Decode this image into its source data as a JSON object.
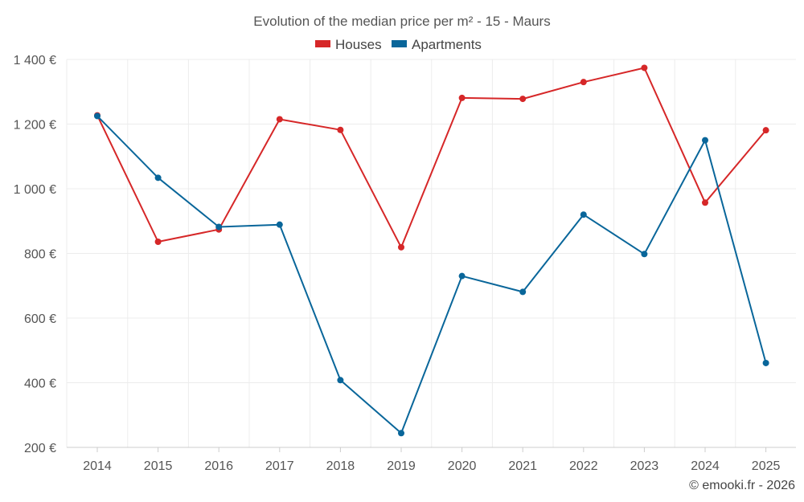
{
  "chart_data": {
    "type": "line",
    "title": "Evolution of the median price per m² - 15 - Maurs",
    "categories": [
      "2014",
      "2015",
      "2016",
      "2017",
      "2018",
      "2019",
      "2020",
      "2021",
      "2022",
      "2023",
      "2024",
      "2025"
    ],
    "series": [
      {
        "name": "Houses",
        "color": "#d62728",
        "values": [
          1227,
          836,
          874,
          1215,
          1182,
          819,
          1281,
          1278,
          1330,
          1374,
          957,
          1181
        ]
      },
      {
        "name": "Apartments",
        "color": "#09669a",
        "values": [
          1225,
          1034,
          882,
          889,
          408,
          244,
          730,
          681,
          920,
          798,
          1150,
          461
        ]
      }
    ],
    "ylim": [
      200,
      1400
    ],
    "yticks": [
      200,
      400,
      600,
      800,
      1000,
      1200,
      1400
    ],
    "ytick_labels": [
      "200 €",
      "400 €",
      "600 €",
      "800 €",
      "1 000 €",
      "1 200 €",
      "1 400 €"
    ],
    "xlabel": "",
    "ylabel": "",
    "grid": true,
    "legend_position": "top-center"
  },
  "credit": "© emooki.fr - 2026"
}
